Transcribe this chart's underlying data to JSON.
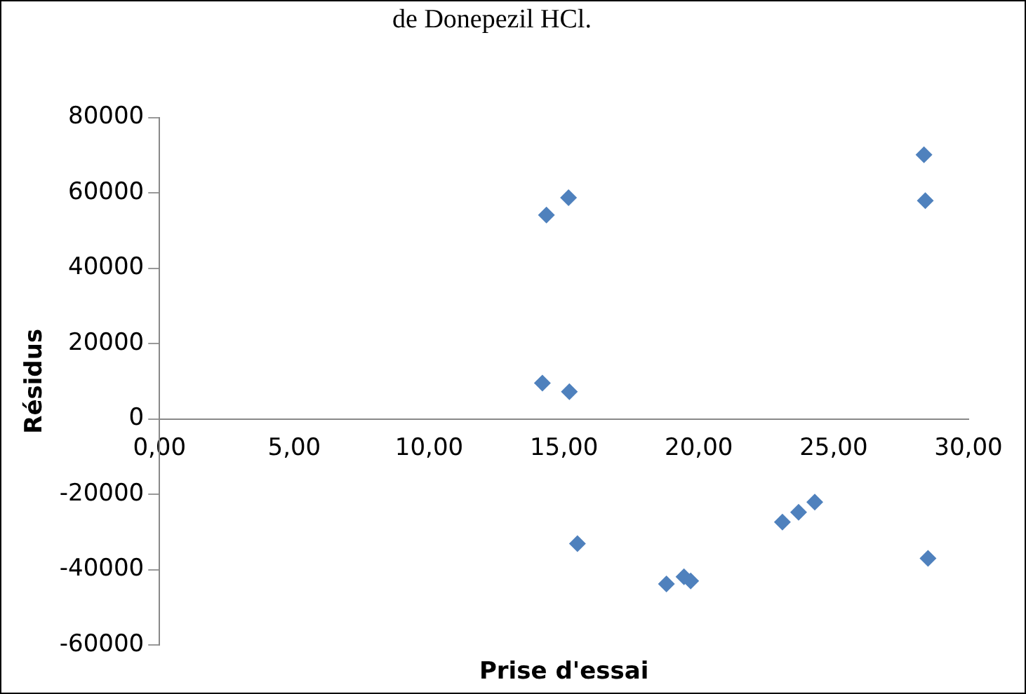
{
  "chart_data": {
    "type": "scatter",
    "title": "de Donepezil HCl.",
    "xlabel": "Prise d'essai",
    "ylabel": "Résidus",
    "x": [
      14.35,
      15.17,
      28.35,
      28.4,
      14.2,
      15.2,
      15.5,
      18.8,
      19.45,
      19.7,
      23.1,
      23.7,
      24.3,
      28.5
    ],
    "series": [
      {
        "color": "#4f81bd",
        "values": [
          54100,
          58700,
          70100,
          57900,
          9500,
          7200,
          -33100,
          -43800,
          -41900,
          -43000,
          -27400,
          -24800,
          -22100,
          -37000
        ]
      }
    ],
    "xlim": [
      0,
      30
    ],
    "ylim": [
      -60000,
      80000
    ],
    "xticks": [
      {
        "value": 0,
        "label": "0,00"
      },
      {
        "value": 5,
        "label": "5,00"
      },
      {
        "value": 10,
        "label": "10,00"
      },
      {
        "value": 15,
        "label": "15,00"
      },
      {
        "value": 20,
        "label": "20,00"
      },
      {
        "value": 25,
        "label": "25,00"
      },
      {
        "value": 30,
        "label": "30,00"
      }
    ],
    "yticks": [
      -60000,
      -40000,
      -20000,
      0,
      20000,
      40000,
      60000,
      80000
    ],
    "grid": false,
    "legend": false,
    "marker": "diamond"
  }
}
